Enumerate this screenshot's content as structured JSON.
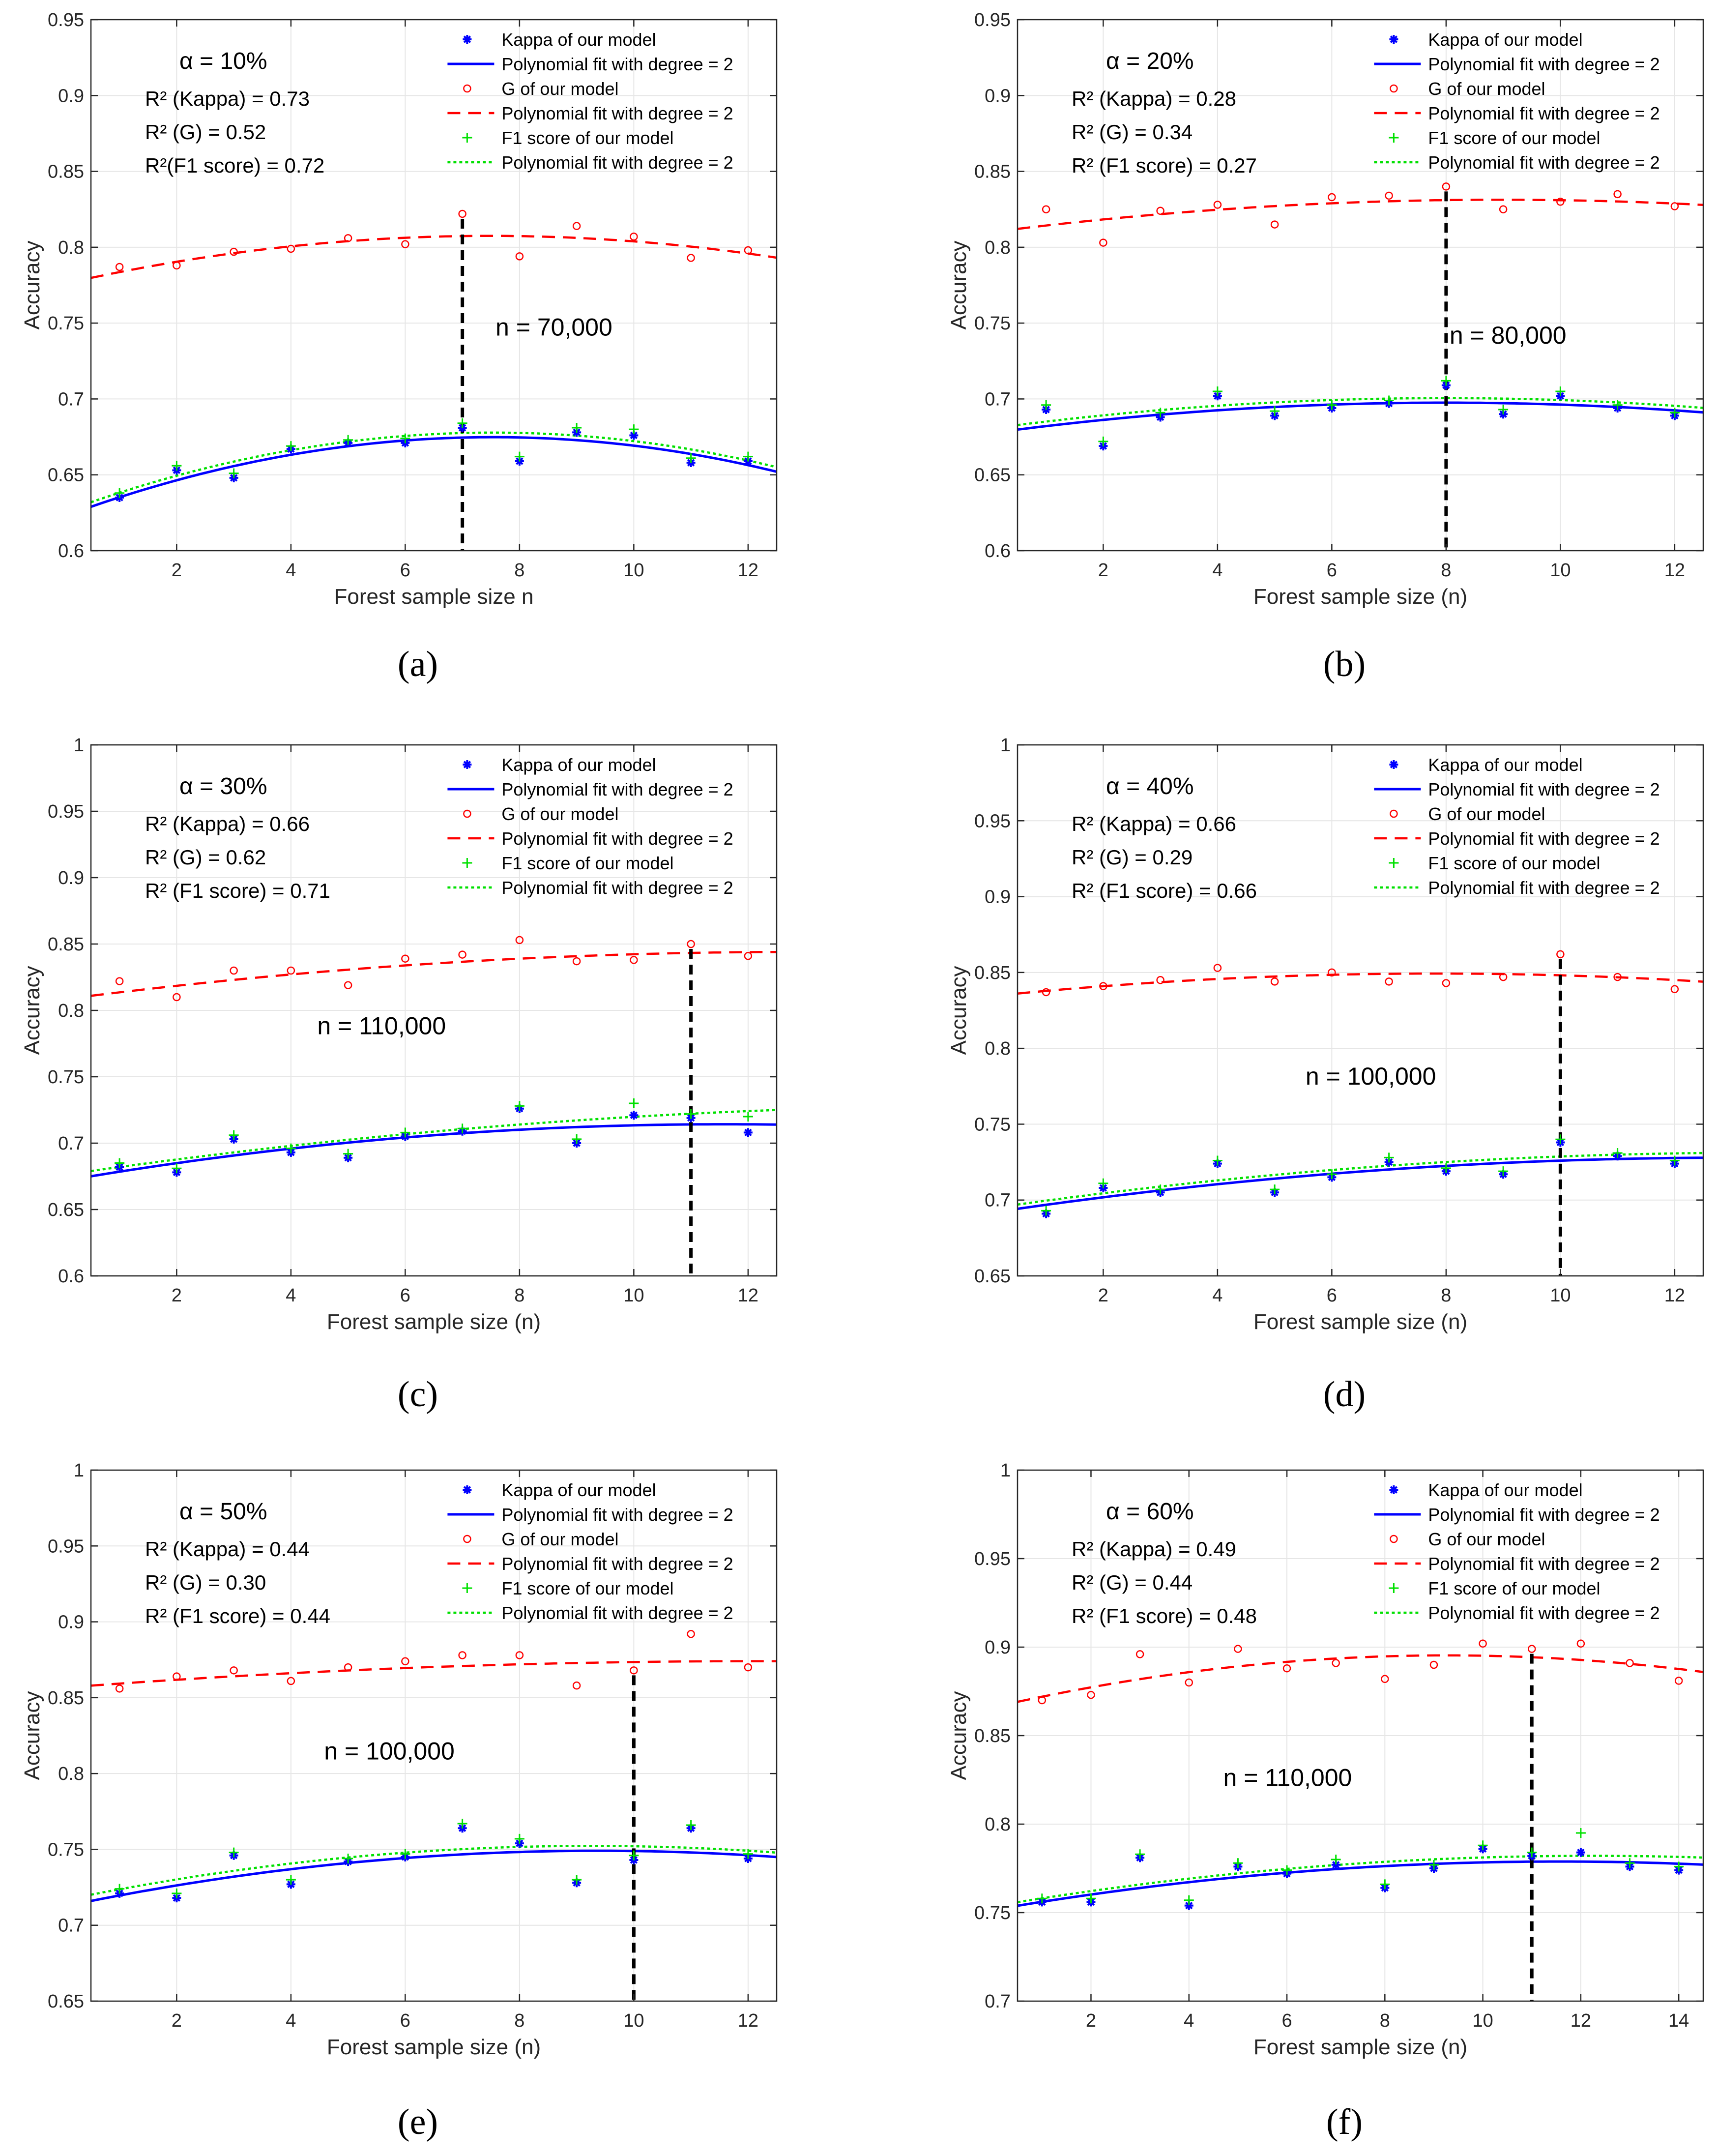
{
  "colors": {
    "kappa": "#0000ff",
    "g": "#ff0000",
    "f1": "#00e000",
    "grid": "#e6e6e6",
    "axis": "#262626",
    "vline": "#000000"
  },
  "chart_data": [
    {
      "type": "scatter",
      "caption": "(a)",
      "alpha_label": "α = 10%",
      "r2": [
        "R² (Kappa) = 0.73",
        "R² (G) = 0.52",
        "R²(F1 score) = 0.72"
      ],
      "n_label": "n = 70,000",
      "n_line_x": 7,
      "xlabel": "Forest sample size n",
      "ylabel": "Accuracy",
      "xlim": [
        0.5,
        12.5
      ],
      "ylim": [
        0.6,
        0.95
      ],
      "xticks": [
        2,
        4,
        6,
        8,
        10,
        12
      ],
      "yticks": [
        0.6,
        0.65,
        0.7,
        0.75,
        0.8,
        0.85,
        0.9,
        0.95
      ],
      "ytick_labels": [
        "0.6",
        "0.65",
        "0.7",
        "0.75",
        "0.8",
        "0.85",
        "0.9",
        "0.95"
      ],
      "legend": [
        "Kappa of our model",
        "Polynomial fit with degree = 2",
        "G of our model",
        "Polynomial fit with degree = 2",
        "F1 score of our model",
        "Polynomial fit with degree = 2"
      ],
      "x": [
        1,
        2,
        3,
        4,
        5,
        6,
        7,
        8,
        9,
        10,
        11,
        12
      ],
      "series": [
        {
          "name": "Kappa of our model",
          "values": [
            0.635,
            0.653,
            0.648,
            0.667,
            0.671,
            0.671,
            0.681,
            0.659,
            0.678,
            0.676,
            0.658,
            0.659
          ]
        },
        {
          "name": "G of our model",
          "values": [
            0.787,
            0.788,
            0.797,
            0.799,
            0.806,
            0.802,
            0.822,
            0.794,
            0.814,
            0.807,
            0.793,
            0.798
          ]
        },
        {
          "name": "F1 score of our model",
          "values": [
            0.638,
            0.656,
            0.651,
            0.669,
            0.673,
            0.674,
            0.684,
            0.662,
            0.681,
            0.68,
            0.661,
            0.662
          ]
        }
      ],
      "fits": [
        {
          "name": "Kappa fit",
          "points": [
            [
              0.5,
              0.629
            ],
            [
              4,
              0.663
            ],
            [
              7.5,
              0.675
            ],
            [
              12.5,
              0.652
            ]
          ]
        },
        {
          "name": "G fit",
          "points": [
            [
              0.5,
              0.78
            ],
            [
              4,
              0.8
            ],
            [
              7.5,
              0.808
            ],
            [
              12.5,
              0.793
            ]
          ]
        },
        {
          "name": "F1 fit",
          "points": [
            [
              0.5,
              0.632
            ],
            [
              4,
              0.666
            ],
            [
              7.5,
              0.678
            ],
            [
              12.5,
              0.655
            ]
          ]
        }
      ]
    },
    {
      "type": "scatter",
      "caption": "(b)",
      "alpha_label": "α = 20%",
      "r2": [
        "R² (Kappa) = 0.28",
        "R² (G) = 0.34",
        "R² (F1 score) = 0.27"
      ],
      "n_label": "n = 80,000",
      "n_line_x": 8,
      "xlabel": "Forest sample size (n)",
      "ylabel": "Accuracy",
      "xlim": [
        0.5,
        12.5
      ],
      "ylim": [
        0.6,
        0.95
      ],
      "xticks": [
        2,
        4,
        6,
        8,
        10,
        12
      ],
      "yticks": [
        0.6,
        0.65,
        0.7,
        0.75,
        0.8,
        0.85,
        0.9,
        0.95
      ],
      "ytick_labels": [
        "0.6",
        "0.65",
        "0.7",
        "0.75",
        "0.8",
        "0.85",
        "0.9",
        "0.95"
      ],
      "legend": [
        "Kappa of our model",
        "Polynomial fit with degree = 2",
        "G of our model",
        "Polynomial fit with degree = 2",
        "F1 score of our model",
        "Polynomial fit with degree = 2"
      ],
      "x": [
        1,
        2,
        3,
        4,
        5,
        6,
        7,
        8,
        9,
        10,
        11,
        12
      ],
      "series": [
        {
          "name": "Kappa of our model",
          "values": [
            0.693,
            0.669,
            0.688,
            0.702,
            0.689,
            0.694,
            0.697,
            0.709,
            0.69,
            0.702,
            0.694,
            0.689
          ]
        },
        {
          "name": "G of our model",
          "values": [
            0.825,
            0.803,
            0.824,
            0.828,
            0.815,
            0.833,
            0.834,
            0.84,
            0.825,
            0.83,
            0.835,
            0.827
          ]
        },
        {
          "name": "F1 score of our model",
          "values": [
            0.696,
            0.672,
            0.691,
            0.705,
            0.692,
            0.696,
            0.699,
            0.712,
            0.693,
            0.705,
            0.696,
            0.691
          ]
        }
      ],
      "fits": [
        {
          "name": "Kappa fit",
          "points": [
            [
              0.5,
              0.68
            ],
            [
              4,
              0.692
            ],
            [
              8,
              0.698
            ],
            [
              12.5,
              0.691
            ]
          ]
        },
        {
          "name": "G fit",
          "points": [
            [
              0.5,
              0.812
            ],
            [
              4,
              0.825
            ],
            [
              8.5,
              0.831
            ],
            [
              12.5,
              0.828
            ]
          ]
        },
        {
          "name": "F1 fit",
          "points": [
            [
              0.5,
              0.683
            ],
            [
              4,
              0.695
            ],
            [
              8,
              0.701
            ],
            [
              12.5,
              0.694
            ]
          ]
        }
      ]
    },
    {
      "type": "scatter",
      "caption": "(c)",
      "alpha_label": "α = 30%",
      "r2": [
        "R² (Kappa) = 0.66",
        "R² (G) = 0.62",
        "R² (F1 score) = 0.71"
      ],
      "n_label": "n = 110,000",
      "n_line_x": 11,
      "xlabel": "Forest sample size (n)",
      "ylabel": "Accuracy",
      "xlim": [
        0.5,
        12.5
      ],
      "ylim": [
        0.6,
        1.0
      ],
      "xticks": [
        2,
        4,
        6,
        8,
        10,
        12
      ],
      "yticks": [
        0.6,
        0.65,
        0.7,
        0.75,
        0.8,
        0.85,
        0.9,
        0.95,
        1.0
      ],
      "ytick_labels": [
        "0.6",
        "0.65",
        "0.7",
        "0.75",
        "0.8",
        "0.85",
        "0.9",
        "0.95",
        "1"
      ],
      "legend": [
        "Kappa of our model",
        "Polynomial fit with degree = 2",
        "G of our model",
        "Polynomial fit with degree = 2",
        "F1 score of our model",
        "Polynomial fit with degree = 2"
      ],
      "x": [
        1,
        2,
        3,
        4,
        5,
        6,
        7,
        8,
        9,
        10,
        11,
        12
      ],
      "series": [
        {
          "name": "Kappa of our model",
          "values": [
            0.682,
            0.678,
            0.703,
            0.693,
            0.689,
            0.705,
            0.709,
            0.726,
            0.7,
            0.721,
            0.719,
            0.708
          ]
        },
        {
          "name": "G of our model",
          "values": [
            0.822,
            0.81,
            0.83,
            0.83,
            0.819,
            0.839,
            0.842,
            0.853,
            0.837,
            0.838,
            0.85,
            0.841
          ]
        },
        {
          "name": "F1 score of our model",
          "values": [
            0.685,
            0.681,
            0.706,
            0.696,
            0.692,
            0.708,
            0.711,
            0.728,
            0.703,
            0.73,
            0.722,
            0.72
          ]
        }
      ],
      "fits": [
        {
          "name": "Kappa fit",
          "points": [
            [
              0.5,
              0.675
            ],
            [
              4,
              0.696
            ],
            [
              8,
              0.71
            ],
            [
              12.5,
              0.714
            ]
          ]
        },
        {
          "name": "G fit",
          "points": [
            [
              0.5,
              0.811
            ],
            [
              4,
              0.827
            ],
            [
              8,
              0.839
            ],
            [
              12.5,
              0.844
            ]
          ]
        },
        {
          "name": "F1 fit",
          "points": [
            [
              0.5,
              0.679
            ],
            [
              4,
              0.698
            ],
            [
              8,
              0.714
            ],
            [
              12.5,
              0.725
            ]
          ]
        }
      ]
    },
    {
      "type": "scatter",
      "caption": "(d)",
      "alpha_label": "α = 40%",
      "r2": [
        "R² (Kappa) = 0.66",
        "R² (G) = 0.29",
        "R² (F1 score) = 0.66"
      ],
      "n_label": "n = 100,000",
      "n_line_x": 10,
      "xlabel": "Forest sample size (n)",
      "ylabel": "Accuracy",
      "xlim": [
        0.5,
        12.5
      ],
      "ylim": [
        0.65,
        1.0
      ],
      "xticks": [
        2,
        4,
        6,
        8,
        10,
        12
      ],
      "yticks": [
        0.65,
        0.7,
        0.75,
        0.8,
        0.85,
        0.9,
        0.95,
        1.0
      ],
      "ytick_labels": [
        "0.65",
        "0.7",
        "0.75",
        "0.8",
        "0.85",
        "0.9",
        "0.95",
        "1"
      ],
      "legend": [
        "Kappa of our model",
        "Polynomial fit with degree = 2",
        "G of our model",
        "Polynomial fit with degree = 2",
        "F1 score of our model",
        "Polynomial fit with degree = 2"
      ],
      "x": [
        1,
        2,
        3,
        4,
        5,
        6,
        7,
        8,
        9,
        10,
        11,
        12
      ],
      "series": [
        {
          "name": "Kappa of our model",
          "values": [
            0.691,
            0.708,
            0.705,
            0.724,
            0.705,
            0.715,
            0.725,
            0.719,
            0.717,
            0.738,
            0.729,
            0.724
          ]
        },
        {
          "name": "G of our model",
          "values": [
            0.837,
            0.841,
            0.845,
            0.853,
            0.844,
            0.85,
            0.844,
            0.843,
            0.847,
            0.862,
            0.847,
            0.839
          ]
        },
        {
          "name": "F1 score of our model",
          "values": [
            0.693,
            0.711,
            0.707,
            0.726,
            0.707,
            0.717,
            0.728,
            0.721,
            0.719,
            0.74,
            0.731,
            0.726
          ]
        }
      ],
      "fits": [
        {
          "name": "Kappa fit",
          "points": [
            [
              0.5,
              0.694
            ],
            [
              4,
              0.711
            ],
            [
              8,
              0.722
            ],
            [
              12.5,
              0.728
            ]
          ]
        },
        {
          "name": "G fit",
          "points": [
            [
              0.5,
              0.836
            ],
            [
              4,
              0.846
            ],
            [
              7.5,
              0.849
            ],
            [
              12.5,
              0.844
            ]
          ]
        },
        {
          "name": "F1 fit",
          "points": [
            [
              0.5,
              0.697
            ],
            [
              4,
              0.713
            ],
            [
              8,
              0.725
            ],
            [
              12.5,
              0.731
            ]
          ]
        }
      ]
    },
    {
      "type": "scatter",
      "caption": "(e)",
      "alpha_label": "α = 50%",
      "r2": [
        "R² (Kappa) = 0.44",
        "R² (G) = 0.30",
        "R² (F1 score) = 0.44"
      ],
      "n_label": "n = 100,000",
      "n_line_x": 10,
      "xlabel": "Forest sample size (n)",
      "ylabel": "Accuracy",
      "xlim": [
        0.5,
        12.5
      ],
      "ylim": [
        0.65,
        1.0
      ],
      "xticks": [
        2,
        4,
        6,
        8,
        10,
        12
      ],
      "yticks": [
        0.65,
        0.7,
        0.75,
        0.8,
        0.85,
        0.9,
        0.95,
        1.0
      ],
      "ytick_labels": [
        "0.65",
        "0.7",
        "0.75",
        "0.8",
        "0.85",
        "0.9",
        "0.95",
        "1"
      ],
      "legend": [
        "Kappa of our model",
        "Polynomial fit with degree = 2",
        "G of our model",
        "Polynomial fit with degree = 2",
        "F1 score of our model",
        "Polynomial fit with degree = 2"
      ],
      "x": [
        1,
        2,
        3,
        4,
        5,
        6,
        7,
        8,
        9,
        10,
        11,
        12
      ],
      "series": [
        {
          "name": "Kappa of our model",
          "values": [
            0.721,
            0.718,
            0.746,
            0.727,
            0.742,
            0.745,
            0.764,
            0.754,
            0.728,
            0.743,
            0.764,
            0.744
          ]
        },
        {
          "name": "G of our model",
          "values": [
            0.856,
            0.864,
            0.868,
            0.861,
            0.87,
            0.874,
            0.878,
            0.878,
            0.858,
            0.868,
            0.892,
            0.87
          ]
        },
        {
          "name": "F1 score of our model",
          "values": [
            0.724,
            0.721,
            0.748,
            0.73,
            0.744,
            0.747,
            0.767,
            0.757,
            0.73,
            0.746,
            0.766,
            0.747
          ]
        }
      ],
      "fits": [
        {
          "name": "Kappa fit",
          "points": [
            [
              0.5,
              0.716
            ],
            [
              4,
              0.737
            ],
            [
              9,
              0.749
            ],
            [
              12.5,
              0.745
            ]
          ]
        },
        {
          "name": "G fit",
          "points": [
            [
              0.5,
              0.858
            ],
            [
              4,
              0.866
            ],
            [
              9,
              0.873
            ],
            [
              12.5,
              0.874
            ]
          ]
        },
        {
          "name": "F1 fit",
          "points": [
            [
              0.5,
              0.72
            ],
            [
              4,
              0.741
            ],
            [
              9,
              0.752
            ],
            [
              12.5,
              0.748
            ]
          ]
        }
      ]
    },
    {
      "type": "scatter",
      "caption": "(f)",
      "alpha_label": "α = 60%",
      "r2": [
        "R² (Kappa) = 0.49",
        "R² (G) = 0.44",
        "R² (F1 score) = 0.48"
      ],
      "n_label": "n = 110,000",
      "n_line_x": 11,
      "xlabel": "Forest sample size (n)",
      "ylabel": "Accuracy",
      "xlim": [
        0.5,
        14.5
      ],
      "ylim": [
        0.7,
        1.0
      ],
      "xticks": [
        2,
        4,
        6,
        8,
        10,
        12,
        14
      ],
      "yticks": [
        0.7,
        0.75,
        0.8,
        0.85,
        0.9,
        0.95,
        1.0
      ],
      "ytick_labels": [
        "0.7",
        "0.75",
        "0.8",
        "0.85",
        "0.9",
        "0.95",
        "1"
      ],
      "legend": [
        "Kappa of our model",
        "Polynomial fit with degree = 2",
        "G of our model",
        "Polynomial fit with degree = 2",
        "F1 score of our model",
        "Polynomial fit with degree = 2"
      ],
      "x": [
        1,
        2,
        3,
        4,
        5,
        6,
        7,
        8,
        9,
        10,
        11,
        12,
        13,
        14
      ],
      "series": [
        {
          "name": "Kappa of our model",
          "values": [
            0.756,
            0.756,
            0.781,
            0.754,
            0.776,
            0.772,
            0.777,
            0.764,
            0.775,
            0.786,
            0.782,
            0.784,
            0.776,
            0.774
          ]
        },
        {
          "name": "G of our model",
          "values": [
            0.87,
            0.873,
            0.896,
            0.88,
            0.899,
            0.888,
            0.891,
            0.882,
            0.89,
            0.902,
            0.899,
            0.902,
            0.891,
            0.881
          ]
        },
        {
          "name": "F1 score of our model",
          "values": [
            0.758,
            0.758,
            0.783,
            0.757,
            0.778,
            0.774,
            0.78,
            0.766,
            0.777,
            0.788,
            0.784,
            0.795,
            0.778,
            0.776
          ]
        }
      ],
      "fits": [
        {
          "name": "Kappa fit",
          "points": [
            [
              0.5,
              0.754
            ],
            [
              4,
              0.767
            ],
            [
              11,
              0.779
            ],
            [
              14.5,
              0.777
            ]
          ]
        },
        {
          "name": "G fit",
          "points": [
            [
              0.5,
              0.869
            ],
            [
              4,
              0.886
            ],
            [
              10,
              0.895
            ],
            [
              14.5,
              0.886
            ]
          ]
        },
        {
          "name": "F1 fit",
          "points": [
            [
              0.5,
              0.756
            ],
            [
              4,
              0.769
            ],
            [
              11,
              0.782
            ],
            [
              14.5,
              0.781
            ]
          ]
        }
      ]
    }
  ]
}
